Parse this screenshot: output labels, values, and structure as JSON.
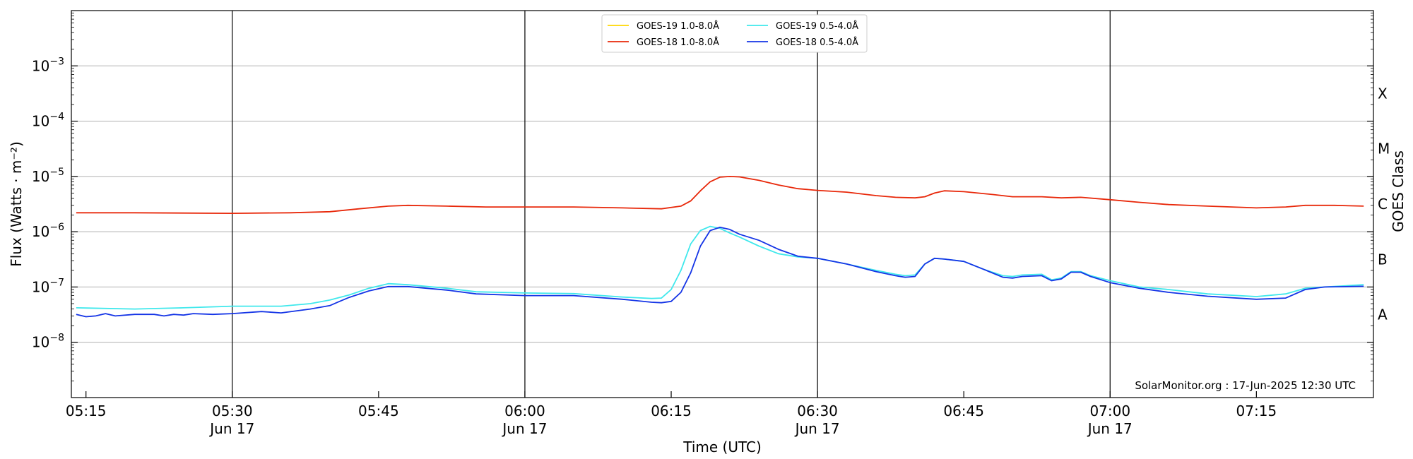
{
  "chart_data": {
    "type": "line",
    "xlabel": "Time (UTC)",
    "ylabel": "Flux (Watts · m⁻²)",
    "y2label": "GOES Class",
    "yscale": "log",
    "ylim": [
      1e-09,
      0.01
    ],
    "xlim": [
      "05:13:30",
      "07:27:00"
    ],
    "x_ticks": [
      {
        "t": "05:15",
        "main": "05:15",
        "date": ""
      },
      {
        "t": "05:30",
        "main": "05:30",
        "date": "Jun 17"
      },
      {
        "t": "05:45",
        "main": "05:45",
        "date": ""
      },
      {
        "t": "06:00",
        "main": "06:00",
        "date": "Jun 17"
      },
      {
        "t": "06:15",
        "main": "06:15",
        "date": ""
      },
      {
        "t": "06:30",
        "main": "06:30",
        "date": "Jun 17"
      },
      {
        "t": "06:45",
        "main": "06:45",
        "date": ""
      },
      {
        "t": "07:00",
        "main": "07:00",
        "date": "Jun 17"
      },
      {
        "t": "07:15",
        "main": "07:15",
        "date": ""
      }
    ],
    "vertical_lines": [
      "05:30",
      "06:00",
      "06:30",
      "07:00"
    ],
    "y_ticks": [
      {
        "exp": -8,
        "label": "10",
        "sup": "−8"
      },
      {
        "exp": -7,
        "label": "10",
        "sup": "−7"
      },
      {
        "exp": -6,
        "label": "10",
        "sup": "−6"
      },
      {
        "exp": -5,
        "label": "10",
        "sup": "−5"
      },
      {
        "exp": -4,
        "label": "10",
        "sup": "−4"
      },
      {
        "exp": -3,
        "label": "10",
        "sup": "−3"
      }
    ],
    "horizontal_grid": [
      -8,
      -7,
      -6,
      -5,
      -4,
      -3
    ],
    "goes_classes": [
      {
        "label": "A",
        "exp": -7.5
      },
      {
        "label": "B",
        "exp": -6.5
      },
      {
        "label": "C",
        "exp": -5.5
      },
      {
        "label": "M",
        "exp": -4.5
      },
      {
        "label": "X",
        "exp": -3.5
      }
    ],
    "legend": {
      "placement": "top-center",
      "columns": 2
    },
    "watermark": "SolarMonitor.org : 17-Jun-2025 12:30 UTC",
    "series": [
      {
        "name": "GOES-19 1.0-8.0Å",
        "color": "#ffd700",
        "x": [],
        "y": []
      },
      {
        "name": "GOES-18 1.0-8.0Å",
        "color": "#e8280a",
        "x": [
          "05:14",
          "05:20",
          "05:30",
          "05:36",
          "05:40",
          "05:43",
          "05:46",
          "05:48",
          "05:52",
          "05:56",
          "06:00",
          "06:05",
          "06:10",
          "06:14",
          "06:16",
          "06:17",
          "06:18",
          "06:19",
          "06:20",
          "06:21",
          "06:22",
          "06:24",
          "06:26",
          "06:28",
          "06:30",
          "06:33",
          "06:36",
          "06:38",
          "06:40",
          "06:41",
          "06:42",
          "06:43",
          "06:45",
          "06:48",
          "06:50",
          "06:53",
          "06:55",
          "06:57",
          "07:00",
          "07:03",
          "07:06",
          "07:10",
          "07:15",
          "07:18",
          "07:20",
          "07:23",
          "07:26"
        ],
        "y": [
          2.2e-06,
          2.2e-06,
          2.15e-06,
          2.2e-06,
          2.3e-06,
          2.6e-06,
          2.9e-06,
          3e-06,
          2.9e-06,
          2.8e-06,
          2.8e-06,
          2.8e-06,
          2.7e-06,
          2.6e-06,
          2.9e-06,
          3.6e-06,
          5.5e-06,
          8e-06,
          9.7e-06,
          1e-05,
          9.8e-06,
          8.5e-06,
          7e-06,
          6e-06,
          5.6e-06,
          5.2e-06,
          4.5e-06,
          4.2e-06,
          4.1e-06,
          4.3e-06,
          5e-06,
          5.5e-06,
          5.3e-06,
          4.7e-06,
          4.3e-06,
          4.3e-06,
          4.1e-06,
          4.2e-06,
          3.8e-06,
          3.4e-06,
          3.1e-06,
          2.9e-06,
          2.7e-06,
          2.8e-06,
          3e-06,
          3e-06,
          2.9e-06
        ]
      },
      {
        "name": "GOES-19 0.5-4.0Å",
        "color": "#3fe8ec",
        "x": [
          "05:14",
          "05:20",
          "05:25",
          "05:30",
          "05:35",
          "05:38",
          "05:40",
          "05:42",
          "05:44",
          "05:46",
          "05:48",
          "05:52",
          "05:55",
          "06:00",
          "06:05",
          "06:10",
          "06:13",
          "06:14",
          "06:15",
          "06:16",
          "06:17",
          "06:18",
          "06:19",
          "06:20",
          "06:21",
          "06:22",
          "06:24",
          "06:26",
          "06:28",
          "06:30",
          "06:33",
          "06:36",
          "06:38",
          "06:39",
          "06:40",
          "06:41",
          "06:42",
          "06:43",
          "06:45",
          "06:47",
          "06:49",
          "06:50",
          "06:51",
          "06:53",
          "06:54",
          "06:55",
          "06:56",
          "06:57",
          "06:58",
          "07:00",
          "07:03",
          "07:06",
          "07:10",
          "07:15",
          "07:18",
          "07:20",
          "07:22",
          "07:26"
        ],
        "y": [
          4.2e-08,
          4e-08,
          4.2e-08,
          4.5e-08,
          4.5e-08,
          5e-08,
          5.8e-08,
          7.2e-08,
          9.5e-08,
          1.15e-07,
          1.1e-07,
          9.5e-08,
          8.2e-08,
          7.8e-08,
          7.6e-08,
          6.6e-08,
          6.2e-08,
          6.3e-08,
          9e-08,
          2e-07,
          6e-07,
          1.05e-06,
          1.25e-06,
          1.15e-06,
          9.5e-07,
          8e-07,
          5.5e-07,
          4e-07,
          3.5e-07,
          3.3e-07,
          2.6e-07,
          2e-07,
          1.7e-07,
          1.6e-07,
          1.65e-07,
          2.6e-07,
          3.3e-07,
          3.2e-07,
          2.9e-07,
          2.1e-07,
          1.6e-07,
          1.55e-07,
          1.65e-07,
          1.7e-07,
          1.35e-07,
          1.45e-07,
          1.9e-07,
          1.9e-07,
          1.6e-07,
          1.3e-07,
          1e-07,
          9e-08,
          7.5e-08,
          6.7e-08,
          7.5e-08,
          9.5e-08,
          1e-07,
          1.1e-07
        ]
      },
      {
        "name": "GOES-18 0.5-4.0Å",
        "color": "#1434e6",
        "x": [
          "05:14",
          "05:15",
          "05:16",
          "05:17",
          "05:18",
          "05:20",
          "05:22",
          "05:23",
          "05:24",
          "05:25",
          "05:26",
          "05:28",
          "05:30",
          "05:33",
          "05:35",
          "05:38",
          "05:40",
          "05:41",
          "05:42",
          "05:44",
          "05:46",
          "05:48",
          "05:52",
          "05:55",
          "06:00",
          "06:05",
          "06:10",
          "06:13",
          "06:14",
          "06:15",
          "06:16",
          "06:17",
          "06:18",
          "06:19",
          "06:20",
          "06:21",
          "06:22",
          "06:24",
          "06:26",
          "06:28",
          "06:30",
          "06:33",
          "06:36",
          "06:38",
          "06:39",
          "06:40",
          "06:41",
          "06:42",
          "06:43",
          "06:45",
          "06:47",
          "06:49",
          "06:50",
          "06:51",
          "06:53",
          "06:54",
          "06:55",
          "06:56",
          "06:57",
          "06:58",
          "07:00",
          "07:03",
          "07:06",
          "07:10",
          "07:15",
          "07:18",
          "07:20",
          "07:22",
          "07:26"
        ],
        "y": [
          3.2e-08,
          2.9e-08,
          3e-08,
          3.3e-08,
          3e-08,
          3.2e-08,
          3.2e-08,
          3e-08,
          3.2e-08,
          3.1e-08,
          3.3e-08,
          3.2e-08,
          3.3e-08,
          3.6e-08,
          3.4e-08,
          4e-08,
          4.6e-08,
          5.5e-08,
          6.5e-08,
          8.5e-08,
          1.02e-07,
          1.02e-07,
          8.8e-08,
          7.5e-08,
          7e-08,
          7e-08,
          6e-08,
          5.3e-08,
          5.2e-08,
          5.5e-08,
          8e-08,
          1.8e-07,
          5.5e-07,
          1.05e-06,
          1.2e-06,
          1.1e-06,
          9e-07,
          7e-07,
          4.8e-07,
          3.6e-07,
          3.3e-07,
          2.6e-07,
          1.9e-07,
          1.6e-07,
          1.5e-07,
          1.55e-07,
          2.6e-07,
          3.3e-07,
          3.2e-07,
          2.9e-07,
          2.1e-07,
          1.5e-07,
          1.45e-07,
          1.55e-07,
          1.6e-07,
          1.3e-07,
          1.4e-07,
          1.85e-07,
          1.85e-07,
          1.55e-07,
          1.2e-07,
          9.5e-08,
          8e-08,
          6.8e-08,
          6e-08,
          6.3e-08,
          9e-08,
          1e-07,
          1.03e-07
        ]
      }
    ]
  }
}
